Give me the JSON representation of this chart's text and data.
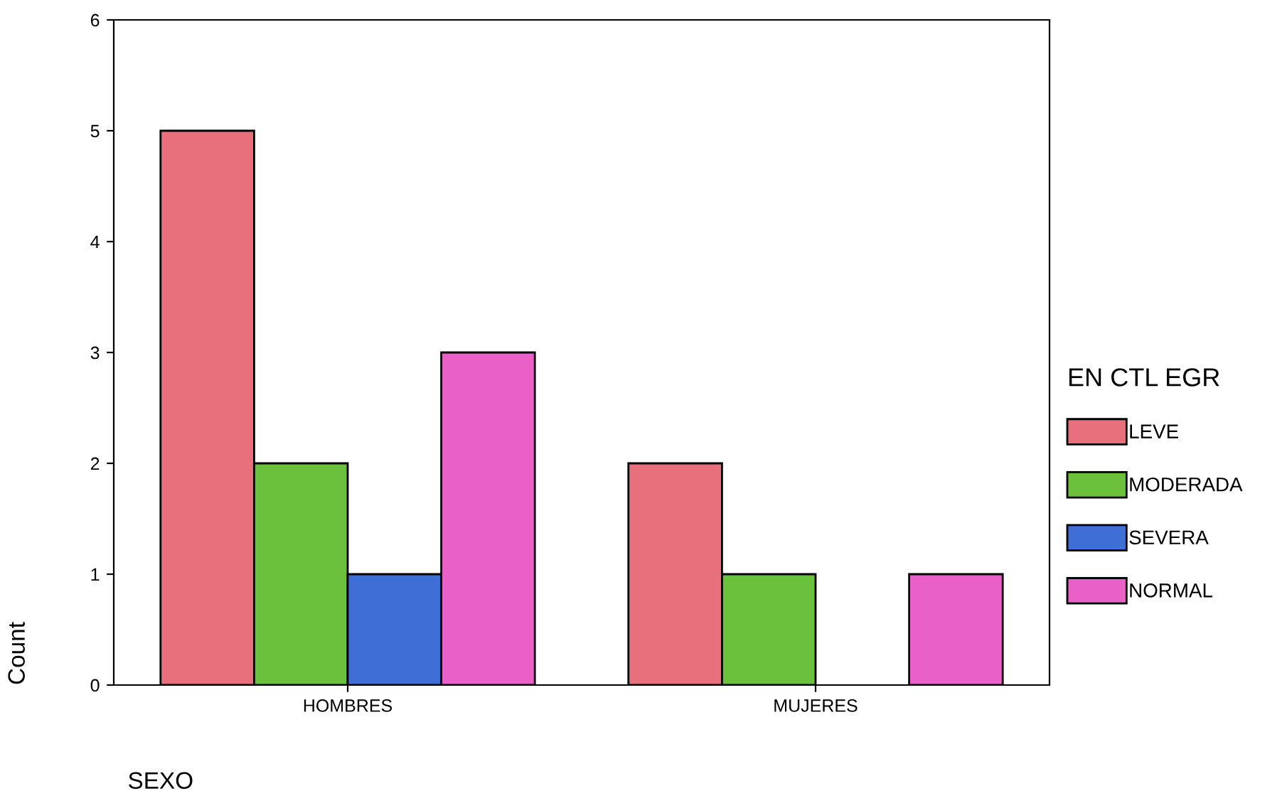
{
  "chart_data": {
    "type": "bar",
    "xlabel": "SEXO",
    "ylabel": "Count",
    "legend_title": "EN CTL EGR",
    "categories": [
      "HOMBRES",
      "MUJERES"
    ],
    "series": [
      {
        "name": "LEVE",
        "color": "#e8707c",
        "values": [
          5,
          2
        ]
      },
      {
        "name": "MODERADA",
        "color": "#6cc13c",
        "values": [
          2,
          1
        ]
      },
      {
        "name": "SEVERA",
        "color": "#3f6fd6",
        "values": [
          1,
          0
        ]
      },
      {
        "name": "NORMAL",
        "color": "#e860c8",
        "values": [
          3,
          1
        ]
      }
    ],
    "ylim": [
      0,
      6
    ],
    "yticks": [
      0,
      1,
      2,
      3,
      4,
      5,
      6
    ],
    "grid": false,
    "legend": "right"
  }
}
